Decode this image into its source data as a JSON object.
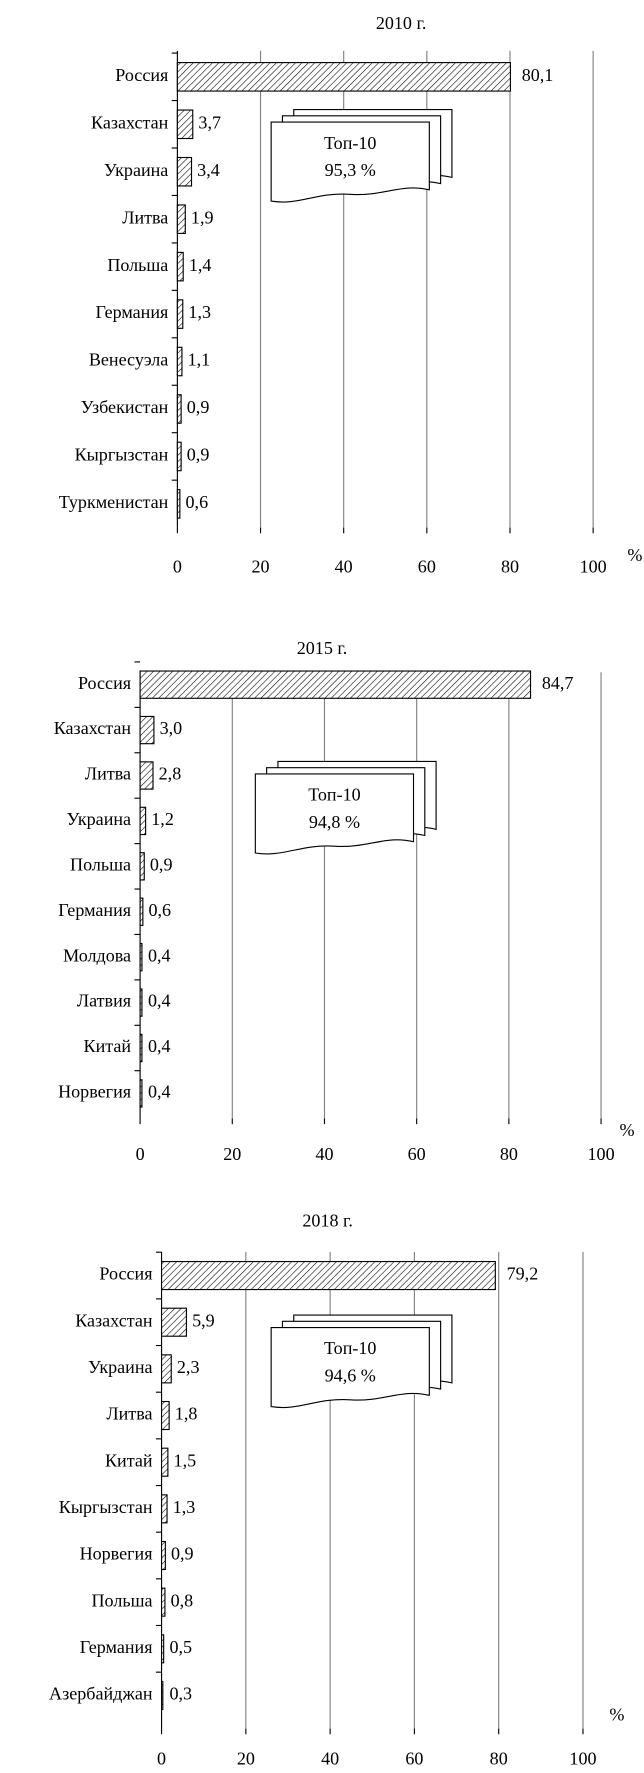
{
  "chart_data": [
    {
      "type": "bar",
      "orientation": "horizontal",
      "title": "2010 г.",
      "color": "#000000",
      "categories": [
        "Россия",
        "Казахстан",
        "Украина",
        "Литва",
        "Польша",
        "Германия",
        "Венесуэла",
        "Узбекистан",
        "Кыргызстан",
        "Туркменистан"
      ],
      "values": [
        80.1,
        3.7,
        3.4,
        1.9,
        1.4,
        1.3,
        1.1,
        0.9,
        0.9,
        0.6
      ],
      "value_labels": [
        "80,1",
        "3,7",
        "3,4",
        "1,9",
        "1,4",
        "1,3",
        "1,1",
        "0,9",
        "0,9",
        "0,6"
      ],
      "xlim": [
        0,
        100
      ],
      "xticks": [
        0,
        20,
        40,
        60,
        80,
        100
      ],
      "x_label": "%",
      "grid": true,
      "annotation": [
        "Топ-10",
        "95,3 %"
      ]
    },
    {
      "type": "bar",
      "orientation": "horizontal",
      "title": "2015 г.",
      "color": "#000000",
      "categories": [
        "Россия",
        "Казахстан",
        "Литва",
        "Украина",
        "Польша",
        "Германия",
        "Молдова",
        "Латвия",
        "Китай",
        "Норвегия"
      ],
      "values": [
        84.7,
        3.0,
        2.8,
        1.2,
        0.9,
        0.6,
        0.4,
        0.4,
        0.4,
        0.4
      ],
      "value_labels": [
        "84,7",
        "3,0",
        "2,8",
        "1,2",
        "0,9",
        "0,6",
        "0,4",
        "0,4",
        "0,4",
        "0,4"
      ],
      "xlim": [
        0,
        100
      ],
      "xticks": [
        0,
        20,
        40,
        60,
        80,
        100
      ],
      "x_label": "%",
      "grid": true,
      "annotation": [
        "Топ-10",
        "94,8 %"
      ]
    },
    {
      "type": "bar",
      "orientation": "horizontal",
      "title": "2018 г.",
      "color": "#000000",
      "categories": [
        "Россия",
        "Казахстан",
        "Украина",
        "Литва",
        "Китай",
        "Кыргызстан",
        "Норвегия",
        "Польша",
        "Германия",
        "Азербайджан"
      ],
      "values": [
        79.2,
        5.9,
        2.3,
        1.8,
        1.5,
        1.3,
        0.9,
        0.8,
        0.5,
        0.3
      ],
      "value_labels": [
        "79,2",
        "5,9",
        "2,3",
        "1,8",
        "1,5",
        "1,3",
        "0,9",
        "0,8",
        "0,5",
        "0,3"
      ],
      "xlim": [
        0,
        100
      ],
      "xticks": [
        0,
        20,
        40,
        60,
        80,
        100
      ],
      "x_label": "%",
      "grid": true,
      "annotation": [
        "Топ-10",
        "94,6 %"
      ]
    }
  ]
}
